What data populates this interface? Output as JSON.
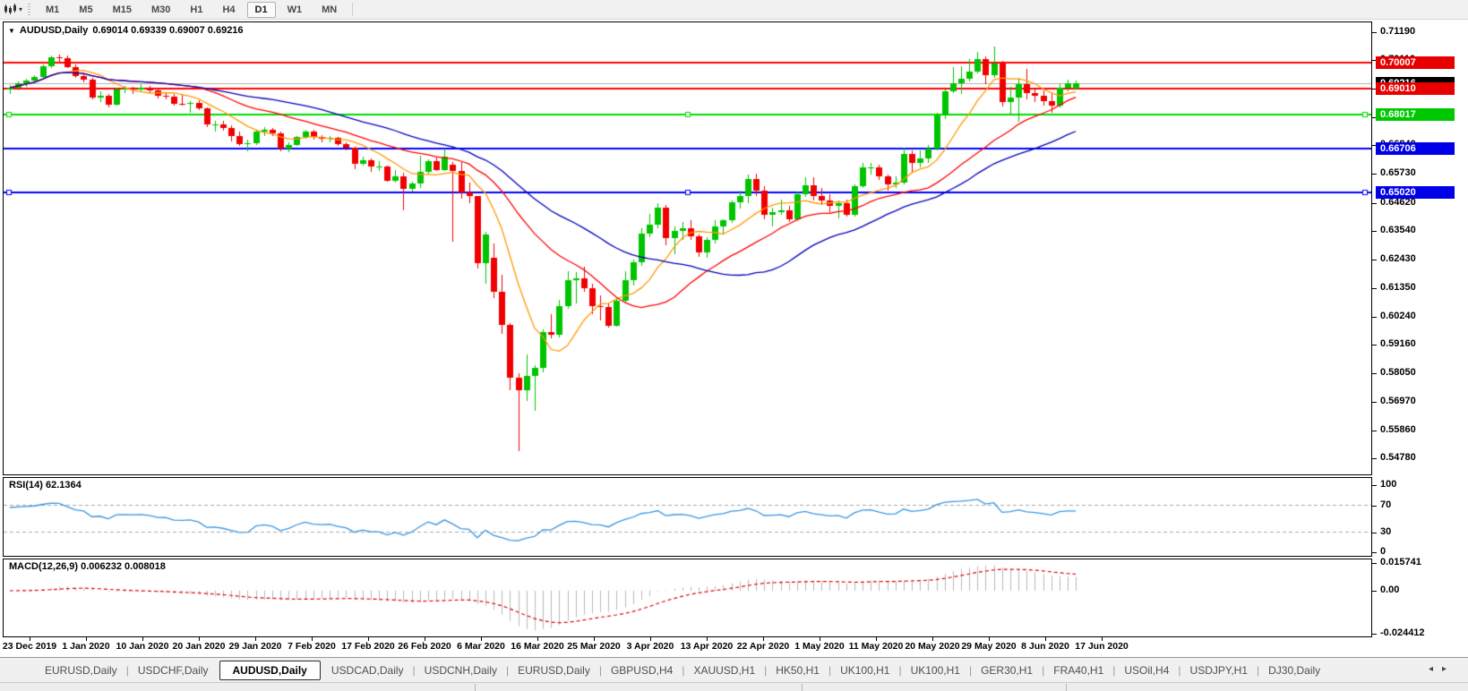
{
  "toolbar": {
    "timeframes": [
      "M1",
      "M5",
      "M15",
      "M30",
      "H1",
      "H4",
      "D1",
      "W1",
      "MN"
    ],
    "active_timeframe": "D1",
    "dropdown_caret": "▾"
  },
  "chart": {
    "collapse_caret": "▼",
    "title": "AUDUSD,Daily",
    "ohlc": "0.69014 0.69339 0.69007 0.69216"
  },
  "price_axis": {
    "ticks": [
      "0.71190",
      "0.70110",
      "0.69030",
      "0.67920",
      "0.66840",
      "0.65730",
      "0.64620",
      "0.63540",
      "0.62430",
      "0.61350",
      "0.60240",
      "0.59160",
      "0.58050",
      "0.56970",
      "0.55860",
      "0.54780"
    ],
    "boxes": [
      {
        "text": "0.70007",
        "bg": "#e80000"
      },
      {
        "text": "0.69216",
        "bg": "#000000"
      },
      {
        "text": "0.69010",
        "bg": "#e80000"
      },
      {
        "text": "0.68017",
        "bg": "#00c800"
      },
      {
        "text": "0.66706",
        "bg": "#0000e8"
      },
      {
        "text": "0.65020",
        "bg": "#0000e8"
      }
    ]
  },
  "indicators": {
    "rsi": {
      "label": "RSI(14) 62.1364",
      "period": 14,
      "value": 62.1364,
      "levels": [
        70,
        30
      ],
      "axis_labels": [
        {
          "text": "100",
          "value": 100
        },
        {
          "text": "70",
          "value": 70
        },
        {
          "text": "30",
          "value": 30
        },
        {
          "text": "0",
          "value": 0
        }
      ]
    },
    "macd": {
      "label": "MACD(12,26,9) 0.006232 0.008018",
      "fast": 12,
      "slow": 26,
      "signal": 9,
      "value": 0.006232,
      "signal_value": 0.008018,
      "axis_labels": [
        {
          "text": "0.015741",
          "value": 0.015741
        },
        {
          "text": "0.00",
          "value": 0
        },
        {
          "text": "-0.024412",
          "value": -0.024412
        }
      ]
    }
  },
  "date_axis": {
    "labels": [
      "23 Dec 2019",
      "1 Jan 2020",
      "10 Jan 2020",
      "20 Jan 2020",
      "29 Jan 2020",
      "7 Feb 2020",
      "17 Feb 2020",
      "26 Feb 2020",
      "6 Mar 2020",
      "16 Mar 2020",
      "25 Mar 2020",
      "3 Apr 2020",
      "13 Apr 2020",
      "22 Apr 2020",
      "1 May 2020",
      "11 May 2020",
      "20 May 2020",
      "29 May 2020",
      "8 Jun 2020",
      "17 Jun 2020"
    ]
  },
  "tabs": {
    "items": [
      "EURUSD,Daily",
      "USDCHF,Daily",
      "AUDUSD,Daily",
      "USDCAD,Daily",
      "USDCNH,Daily",
      "EURUSD,Daily",
      "GBPUSD,H4",
      "XAUUSD,H1",
      "HK50,H1",
      "UK100,H1",
      "UK100,H1",
      "GER30,H1",
      "FRA40,H1",
      "USOil,H4",
      "USDJPY,H1",
      "DJ30,Daily"
    ],
    "active_index": 2,
    "scroll_left": "◂",
    "scroll_right": "▸"
  },
  "colors": {
    "candle_up": "#00c400",
    "candle_down": "#f00000",
    "ma_fast": "#ff9900",
    "ma_mid": "#ff0000",
    "ma_slow": "#0000bb",
    "rsi_line": "#3b96e0",
    "rsi_levels": "#a8a8a8",
    "macd_hist": "#b8b8b8",
    "macd_signal": "#e00000",
    "bid_line": "#b0b0b0"
  },
  "chart_data": {
    "type": "candlestick",
    "symbol": "AUDUSD",
    "timeframe": "Daily",
    "y_range": [
      0.5417,
      0.7157
    ],
    "macd_y_range": [
      -0.0262,
      0.018
    ],
    "rsi_seed": {
      "avg_gain": 0.003,
      "avg_loss": 0.0015
    },
    "moving_averages": [
      {
        "period": 8,
        "method": "sma",
        "color": "#ff9900"
      },
      {
        "period": 21,
        "method": "sma",
        "color": "#ff0000"
      },
      {
        "period": 34,
        "method": "sma",
        "color": "#0000bb"
      }
    ],
    "hlines": [
      {
        "price": 0.70007,
        "color": "#ff0000",
        "selected": false
      },
      {
        "price": 0.6901,
        "color": "#ff0000",
        "selected": false
      },
      {
        "price": 0.68017,
        "color": "#00dd00",
        "selected": true
      },
      {
        "price": 0.66706,
        "color": "#0000ff",
        "selected": false
      },
      {
        "price": 0.6502,
        "color": "#0000ff",
        "selected": true
      }
    ],
    "bid_line": {
      "price": 0.69216,
      "color": "#b0b0b0"
    },
    "candles": [
      [
        0.69,
        0.6915,
        0.688,
        0.6905
      ],
      [
        0.6905,
        0.693,
        0.6895,
        0.6921
      ],
      [
        0.6921,
        0.694,
        0.691,
        0.6934
      ],
      [
        0.6934,
        0.6955,
        0.6924,
        0.6946
      ],
      [
        0.6946,
        0.6995,
        0.694,
        0.6987
      ],
      [
        0.6987,
        0.703,
        0.698,
        0.7021
      ],
      [
        0.7021,
        0.7032,
        0.7005,
        0.7018
      ],
      [
        0.7018,
        0.7028,
        0.698,
        0.6984
      ],
      [
        0.6984,
        0.6995,
        0.6945,
        0.695
      ],
      [
        0.695,
        0.696,
        0.6925,
        0.6937
      ],
      [
        0.6937,
        0.6945,
        0.686,
        0.6866
      ],
      [
        0.6866,
        0.689,
        0.685,
        0.6873
      ],
      [
        0.6873,
        0.688,
        0.683,
        0.6839
      ],
      [
        0.6839,
        0.6905,
        0.6835,
        0.69
      ],
      [
        0.69,
        0.6912,
        0.6885,
        0.6902
      ],
      [
        0.6902,
        0.691,
        0.6883,
        0.69
      ],
      [
        0.69,
        0.692,
        0.689,
        0.6904
      ],
      [
        0.6904,
        0.6913,
        0.6885,
        0.6895
      ],
      [
        0.6895,
        0.69,
        0.6865,
        0.6873
      ],
      [
        0.6873,
        0.6885,
        0.686,
        0.6872
      ],
      [
        0.6872,
        0.688,
        0.6836,
        0.6845
      ],
      [
        0.6845,
        0.688,
        0.6838,
        0.6843
      ],
      [
        0.6843,
        0.6855,
        0.681,
        0.6847
      ],
      [
        0.6847,
        0.6858,
        0.6818,
        0.6827
      ],
      [
        0.6827,
        0.683,
        0.6755,
        0.6764
      ],
      [
        0.6764,
        0.6777,
        0.6735,
        0.6765
      ],
      [
        0.6765,
        0.6778,
        0.674,
        0.675
      ],
      [
        0.675,
        0.676,
        0.67,
        0.672
      ],
      [
        0.672,
        0.6735,
        0.6682,
        0.669
      ],
      [
        0.669,
        0.6705,
        0.6662,
        0.6691
      ],
      [
        0.6691,
        0.674,
        0.6685,
        0.6736
      ],
      [
        0.6736,
        0.6755,
        0.672,
        0.6745
      ],
      [
        0.6745,
        0.6752,
        0.672,
        0.673
      ],
      [
        0.673,
        0.6735,
        0.6662,
        0.667
      ],
      [
        0.667,
        0.6695,
        0.6657,
        0.6686
      ],
      [
        0.6686,
        0.672,
        0.668,
        0.6716
      ],
      [
        0.6716,
        0.6745,
        0.671,
        0.6738
      ],
      [
        0.6738,
        0.6742,
        0.6705,
        0.6716
      ],
      [
        0.6716,
        0.6723,
        0.6697,
        0.671
      ],
      [
        0.671,
        0.6718,
        0.6695,
        0.6713
      ],
      [
        0.6713,
        0.6716,
        0.668,
        0.669
      ],
      [
        0.669,
        0.6695,
        0.6665,
        0.6673
      ],
      [
        0.6673,
        0.6678,
        0.6592,
        0.6611
      ],
      [
        0.6611,
        0.664,
        0.6605,
        0.6627
      ],
      [
        0.6627,
        0.6632,
        0.658,
        0.6601
      ],
      [
        0.6601,
        0.6622,
        0.6585,
        0.6601
      ],
      [
        0.6601,
        0.6605,
        0.6542,
        0.6548
      ],
      [
        0.6548,
        0.659,
        0.654,
        0.6565
      ],
      [
        0.6565,
        0.6578,
        0.6433,
        0.6515
      ],
      [
        0.6515,
        0.6545,
        0.6505,
        0.6537
      ],
      [
        0.6537,
        0.6645,
        0.652,
        0.6581
      ],
      [
        0.6581,
        0.663,
        0.657,
        0.6624
      ],
      [
        0.6624,
        0.664,
        0.6585,
        0.6589
      ],
      [
        0.6589,
        0.667,
        0.6585,
        0.664
      ],
      [
        0.661,
        0.662,
        0.6313,
        0.6584
      ],
      [
        0.6584,
        0.6618,
        0.6477,
        0.6503
      ],
      [
        0.6503,
        0.654,
        0.646,
        0.6488
      ],
      [
        0.6488,
        0.649,
        0.621,
        0.623
      ],
      [
        0.623,
        0.635,
        0.615,
        0.634
      ],
      [
        0.625,
        0.6305,
        0.6095,
        0.612
      ],
      [
        0.612,
        0.6187,
        0.5958,
        0.5993
      ],
      [
        0.5993,
        0.6,
        0.5742,
        0.579
      ],
      [
        0.579,
        0.5805,
        0.5507,
        0.5742
      ],
      [
        0.5742,
        0.588,
        0.57,
        0.5795
      ],
      [
        0.5795,
        0.5838,
        0.566,
        0.5826
      ],
      [
        0.5826,
        0.5975,
        0.581,
        0.5966
      ],
      [
        0.5966,
        0.6035,
        0.594,
        0.5955
      ],
      [
        0.5955,
        0.6088,
        0.5945,
        0.6065
      ],
      [
        0.6065,
        0.62,
        0.6055,
        0.6166
      ],
      [
        0.6166,
        0.6195,
        0.6075,
        0.6172
      ],
      [
        0.6172,
        0.6215,
        0.612,
        0.6133
      ],
      [
        0.6133,
        0.615,
        0.6035,
        0.6065
      ],
      [
        0.6065,
        0.6105,
        0.601,
        0.606
      ],
      [
        0.606,
        0.6075,
        0.5982,
        0.599
      ],
      [
        0.599,
        0.6095,
        0.5985,
        0.6087
      ],
      [
        0.6087,
        0.62,
        0.608,
        0.6166
      ],
      [
        0.6166,
        0.6245,
        0.6145,
        0.6233
      ],
      [
        0.6233,
        0.6363,
        0.622,
        0.6345
      ],
      [
        0.6345,
        0.642,
        0.633,
        0.638
      ],
      [
        0.638,
        0.646,
        0.6365,
        0.6445
      ],
      [
        0.6445,
        0.6453,
        0.63,
        0.6325
      ],
      [
        0.6325,
        0.637,
        0.6265,
        0.6355
      ],
      [
        0.6355,
        0.639,
        0.632,
        0.6365
      ],
      [
        0.6365,
        0.6395,
        0.632,
        0.6335
      ],
      [
        0.6335,
        0.634,
        0.6253,
        0.627
      ],
      [
        0.627,
        0.633,
        0.625,
        0.632
      ],
      [
        0.632,
        0.6395,
        0.6305,
        0.637
      ],
      [
        0.637,
        0.64,
        0.634,
        0.6395
      ],
      [
        0.6395,
        0.6472,
        0.6385,
        0.6465
      ],
      [
        0.6465,
        0.651,
        0.644,
        0.649
      ],
      [
        0.649,
        0.657,
        0.646,
        0.6555
      ],
      [
        0.6555,
        0.6575,
        0.649,
        0.651
      ],
      [
        0.651,
        0.6525,
        0.64,
        0.6417
      ],
      [
        0.6417,
        0.6445,
        0.6372,
        0.6425
      ],
      [
        0.6425,
        0.6475,
        0.6415,
        0.6435
      ],
      [
        0.6435,
        0.645,
        0.639,
        0.64
      ],
      [
        0.64,
        0.6505,
        0.6395,
        0.6495
      ],
      [
        0.6495,
        0.656,
        0.6485,
        0.653
      ],
      [
        0.653,
        0.656,
        0.647,
        0.649
      ],
      [
        0.649,
        0.652,
        0.6455,
        0.647
      ],
      [
        0.647,
        0.6495,
        0.6425,
        0.645
      ],
      [
        0.645,
        0.647,
        0.6403,
        0.646
      ],
      [
        0.646,
        0.6475,
        0.641,
        0.6415
      ],
      [
        0.6415,
        0.6535,
        0.641,
        0.6525
      ],
      [
        0.6525,
        0.6617,
        0.652,
        0.6598
      ],
      [
        0.6598,
        0.6617,
        0.657,
        0.66
      ],
      [
        0.66,
        0.661,
        0.6552,
        0.6565
      ],
      [
        0.6565,
        0.657,
        0.651,
        0.6535
      ],
      [
        0.6535,
        0.6565,
        0.652,
        0.654
      ],
      [
        0.654,
        0.6675,
        0.6535,
        0.665
      ],
      [
        0.665,
        0.6665,
        0.658,
        0.6615
      ],
      [
        0.6615,
        0.6665,
        0.66,
        0.6635
      ],
      [
        0.6635,
        0.6685,
        0.6615,
        0.667
      ],
      [
        0.667,
        0.681,
        0.6665,
        0.6797
      ],
      [
        0.6797,
        0.69,
        0.6785,
        0.6893
      ],
      [
        0.6893,
        0.6983,
        0.6885,
        0.6921
      ],
      [
        0.6921,
        0.6988,
        0.688,
        0.694
      ],
      [
        0.694,
        0.7015,
        0.693,
        0.6968
      ],
      [
        0.6968,
        0.7042,
        0.696,
        0.7015
      ],
      [
        0.7015,
        0.7025,
        0.692,
        0.6955
      ],
      [
        0.6955,
        0.7064,
        0.6945,
        0.7
      ],
      [
        0.7,
        0.701,
        0.6832,
        0.685
      ],
      [
        0.685,
        0.691,
        0.68,
        0.6868
      ],
      [
        0.6868,
        0.6945,
        0.6775,
        0.692
      ],
      [
        0.692,
        0.6977,
        0.686,
        0.6885
      ],
      [
        0.6885,
        0.6905,
        0.685,
        0.6875
      ],
      [
        0.6875,
        0.6895,
        0.6837,
        0.6855
      ],
      [
        0.6855,
        0.6885,
        0.681,
        0.6835
      ],
      [
        0.6835,
        0.692,
        0.683,
        0.6905
      ],
      [
        0.6905,
        0.6935,
        0.689,
        0.6922
      ],
      [
        0.69014,
        0.69339,
        0.69007,
        0.69216
      ]
    ]
  }
}
